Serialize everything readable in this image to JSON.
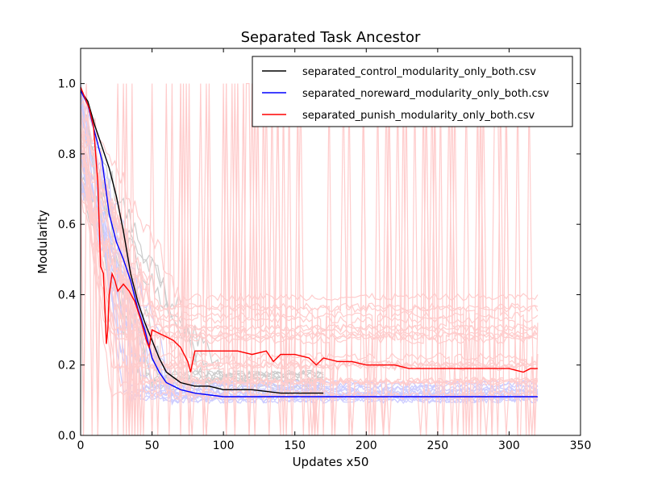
{
  "chart_data": {
    "type": "line",
    "title": "Separated Task Ancestor",
    "xlabel": "Updates x50",
    "ylabel": "Modularity",
    "xlim": [
      0,
      350
    ],
    "ylim": [
      0.0,
      1.1
    ],
    "x_ticks": [
      "0",
      "50",
      "100",
      "150",
      "200",
      "250",
      "300",
      "350"
    ],
    "y_ticks": [
      "0.0",
      "0.2",
      "0.4",
      "0.6",
      "0.8",
      "1.0"
    ],
    "grid": false,
    "legend_position": "top-right",
    "series": [
      {
        "name": "separated_control_modularity_only_both.csv",
        "color": "#000000",
        "x": [
          0,
          5,
          10,
          15,
          20,
          25,
          30,
          35,
          40,
          45,
          50,
          55,
          60,
          70,
          80,
          90,
          100,
          110,
          120,
          140,
          160,
          170
        ],
        "y": [
          0.98,
          0.95,
          0.88,
          0.82,
          0.76,
          0.68,
          0.58,
          0.46,
          0.38,
          0.32,
          0.27,
          0.22,
          0.18,
          0.15,
          0.14,
          0.14,
          0.13,
          0.13,
          0.13,
          0.12,
          0.12,
          0.12
        ]
      },
      {
        "name": "separated_noreward_modularity_only_both.csv",
        "color": "#0000ff",
        "x": [
          0,
          5,
          10,
          15,
          20,
          25,
          30,
          35,
          40,
          45,
          50,
          55,
          60,
          70,
          80,
          100,
          120,
          140,
          160,
          180,
          200,
          220,
          240,
          260,
          280,
          300,
          320
        ],
        "y": [
          0.98,
          0.94,
          0.86,
          0.78,
          0.63,
          0.55,
          0.5,
          0.44,
          0.36,
          0.3,
          0.22,
          0.18,
          0.15,
          0.13,
          0.12,
          0.11,
          0.11,
          0.11,
          0.11,
          0.11,
          0.11,
          0.11,
          0.11,
          0.11,
          0.11,
          0.11,
          0.11
        ]
      },
      {
        "name": "separated_punish_modularity_only_both.csv",
        "color": "#ff0000",
        "x": [
          0,
          3,
          6,
          9,
          12,
          14,
          16,
          18,
          19,
          20,
          22,
          24,
          26,
          28,
          30,
          34,
          38,
          42,
          46,
          48,
          50,
          55,
          60,
          65,
          70,
          75,
          77,
          80,
          90,
          100,
          110,
          120,
          130,
          135,
          140,
          150,
          160,
          165,
          170,
          180,
          190,
          200,
          210,
          220,
          230,
          240,
          250,
          260,
          270,
          280,
          290,
          300,
          310,
          315,
          320
        ],
        "y": [
          0.99,
          0.96,
          0.93,
          0.88,
          0.72,
          0.48,
          0.46,
          0.26,
          0.3,
          0.4,
          0.46,
          0.44,
          0.41,
          0.42,
          0.43,
          0.41,
          0.38,
          0.33,
          0.27,
          0.25,
          0.3,
          0.29,
          0.28,
          0.27,
          0.25,
          0.21,
          0.18,
          0.24,
          0.24,
          0.24,
          0.24,
          0.23,
          0.24,
          0.21,
          0.23,
          0.23,
          0.22,
          0.2,
          0.22,
          0.21,
          0.21,
          0.2,
          0.2,
          0.2,
          0.19,
          0.19,
          0.19,
          0.19,
          0.19,
          0.19,
          0.19,
          0.19,
          0.18,
          0.19,
          0.19
        ]
      }
    ],
    "background_colors": {
      "control_runs": "#cccccc",
      "noreward_runs": "#ccccff",
      "punish_runs": "#ffcccc"
    }
  }
}
